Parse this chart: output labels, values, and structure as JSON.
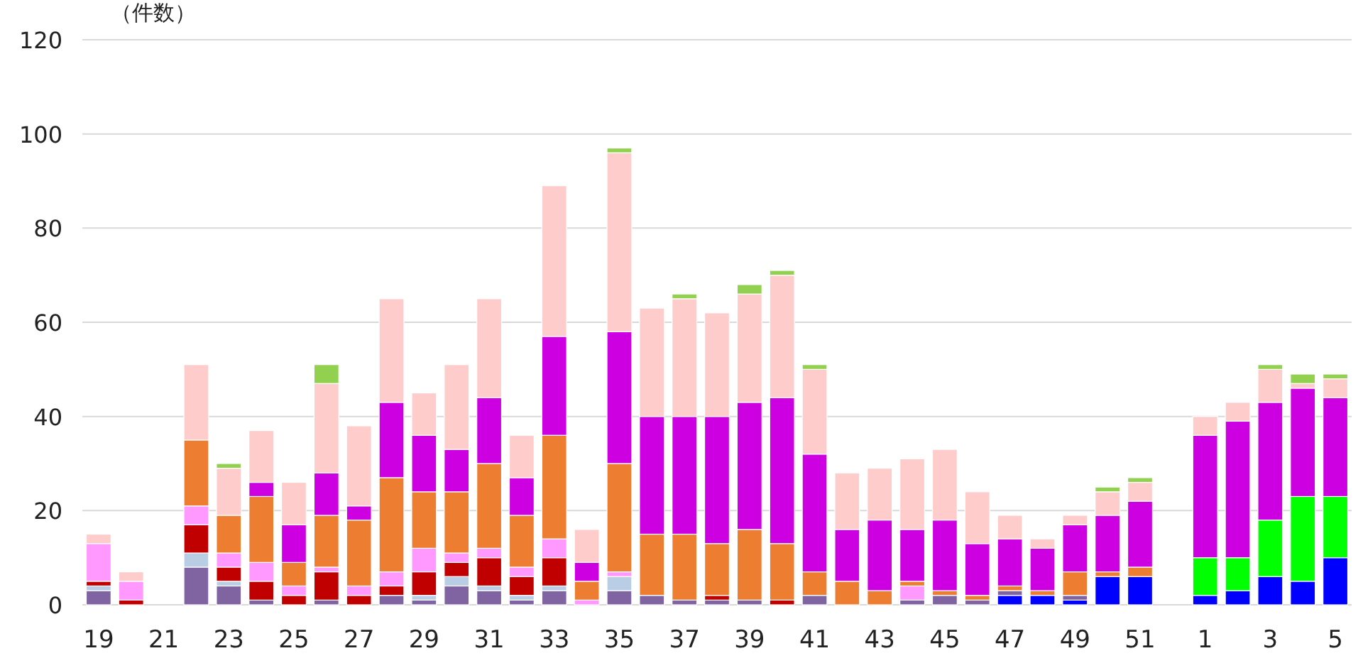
{
  "chart_data": {
    "type": "bar",
    "stacked": true,
    "ylabel": "（件数）",
    "categories": [
      "19",
      null,
      "21",
      null,
      "23",
      null,
      "25",
      null,
      "27",
      null,
      "29",
      null,
      "31",
      null,
      "33",
      null,
      "35",
      null,
      "37",
      null,
      "39",
      null,
      "41",
      null,
      "43",
      null,
      "45",
      null,
      "47",
      null,
      "49",
      null,
      "51",
      null,
      "1",
      null,
      "3",
      null,
      "5"
    ],
    "ylim": [
      0,
      120
    ],
    "yticks": [
      0,
      20,
      40,
      60,
      80,
      100,
      120
    ],
    "grid": "y",
    "series": [
      {
        "color": "#0000ff",
        "values": [
          null,
          null,
          null,
          null,
          null,
          null,
          null,
          null,
          null,
          null,
          null,
          null,
          null,
          null,
          null,
          null,
          null,
          null,
          null,
          null,
          null,
          null,
          null,
          null,
          null,
          null,
          null,
          null,
          2,
          2,
          1,
          6,
          6,
          null,
          2,
          3,
          6,
          5,
          10
        ]
      },
      {
        "color": "#00ff00",
        "values": [
          null,
          null,
          null,
          null,
          null,
          null,
          null,
          null,
          null,
          null,
          null,
          null,
          null,
          null,
          null,
          null,
          null,
          null,
          null,
          null,
          null,
          null,
          null,
          null,
          null,
          null,
          null,
          null,
          null,
          null,
          null,
          null,
          null,
          null,
          8,
          7,
          12,
          18,
          13
        ]
      },
      {
        "color": "#8064a2",
        "values": [
          3,
          null,
          null,
          8,
          4,
          1,
          null,
          1,
          null,
          2,
          1,
          4,
          3,
          1,
          3,
          null,
          3,
          2,
          1,
          1,
          1,
          null,
          2,
          null,
          null,
          1,
          2,
          1,
          1,
          null,
          1,
          null,
          null,
          null,
          null,
          null,
          null,
          null,
          null
        ]
      },
      {
        "color": "#b9cde5",
        "values": [
          1,
          null,
          null,
          3,
          1,
          null,
          null,
          null,
          null,
          null,
          1,
          2,
          1,
          1,
          1,
          null,
          3,
          null,
          null,
          null,
          null,
          null,
          null,
          null,
          null,
          null,
          null,
          null,
          null,
          null,
          null,
          null,
          null,
          null,
          null,
          null,
          null,
          null,
          null
        ]
      },
      {
        "color": "#c00000",
        "values": [
          1,
          1,
          null,
          6,
          3,
          4,
          2,
          6,
          2,
          2,
          5,
          3,
          6,
          4,
          6,
          null,
          null,
          null,
          null,
          1,
          null,
          1,
          null,
          null,
          null,
          null,
          null,
          null,
          null,
          null,
          null,
          null,
          null,
          null,
          null,
          null,
          null,
          null,
          null
        ]
      },
      {
        "color": "#ff99ff",
        "values": [
          8,
          4,
          null,
          4,
          3,
          4,
          2,
          1,
          2,
          3,
          5,
          2,
          2,
          2,
          4,
          1,
          1,
          null,
          null,
          null,
          null,
          null,
          null,
          null,
          null,
          3,
          null,
          null,
          null,
          null,
          null,
          null,
          null,
          null,
          null,
          null,
          null,
          null,
          null
        ]
      },
      {
        "color": "#ed7d31",
        "values": [
          null,
          null,
          null,
          14,
          8,
          14,
          5,
          11,
          14,
          20,
          12,
          13,
          18,
          11,
          22,
          4,
          23,
          13,
          14,
          11,
          15,
          12,
          5,
          5,
          3,
          1,
          1,
          1,
          1,
          1,
          5,
          1,
          2,
          null,
          null,
          null,
          null,
          null,
          null
        ]
      },
      {
        "color": "#cc00e0",
        "values": [
          null,
          null,
          null,
          null,
          null,
          3,
          8,
          9,
          3,
          16,
          12,
          9,
          14,
          8,
          21,
          4,
          28,
          25,
          25,
          27,
          27,
          31,
          25,
          11,
          15,
          11,
          15,
          11,
          10,
          9,
          10,
          12,
          14,
          null,
          26,
          29,
          25,
          23,
          21
        ]
      },
      {
        "color": "#ffcccc",
        "values": [
          2,
          2,
          null,
          16,
          10,
          11,
          9,
          19,
          17,
          22,
          9,
          18,
          21,
          9,
          32,
          7,
          38,
          23,
          25,
          22,
          23,
          26,
          18,
          12,
          11,
          15,
          15,
          11,
          5,
          2,
          2,
          5,
          4,
          null,
          4,
          4,
          7,
          1,
          4
        ]
      },
      {
        "color": "#92d050",
        "values": [
          null,
          null,
          null,
          null,
          1,
          null,
          null,
          4,
          null,
          null,
          null,
          null,
          null,
          null,
          null,
          null,
          1,
          null,
          1,
          null,
          2,
          1,
          1,
          null,
          null,
          null,
          null,
          null,
          null,
          null,
          null,
          1,
          1,
          null,
          null,
          null,
          1,
          2,
          1
        ]
      }
    ]
  }
}
